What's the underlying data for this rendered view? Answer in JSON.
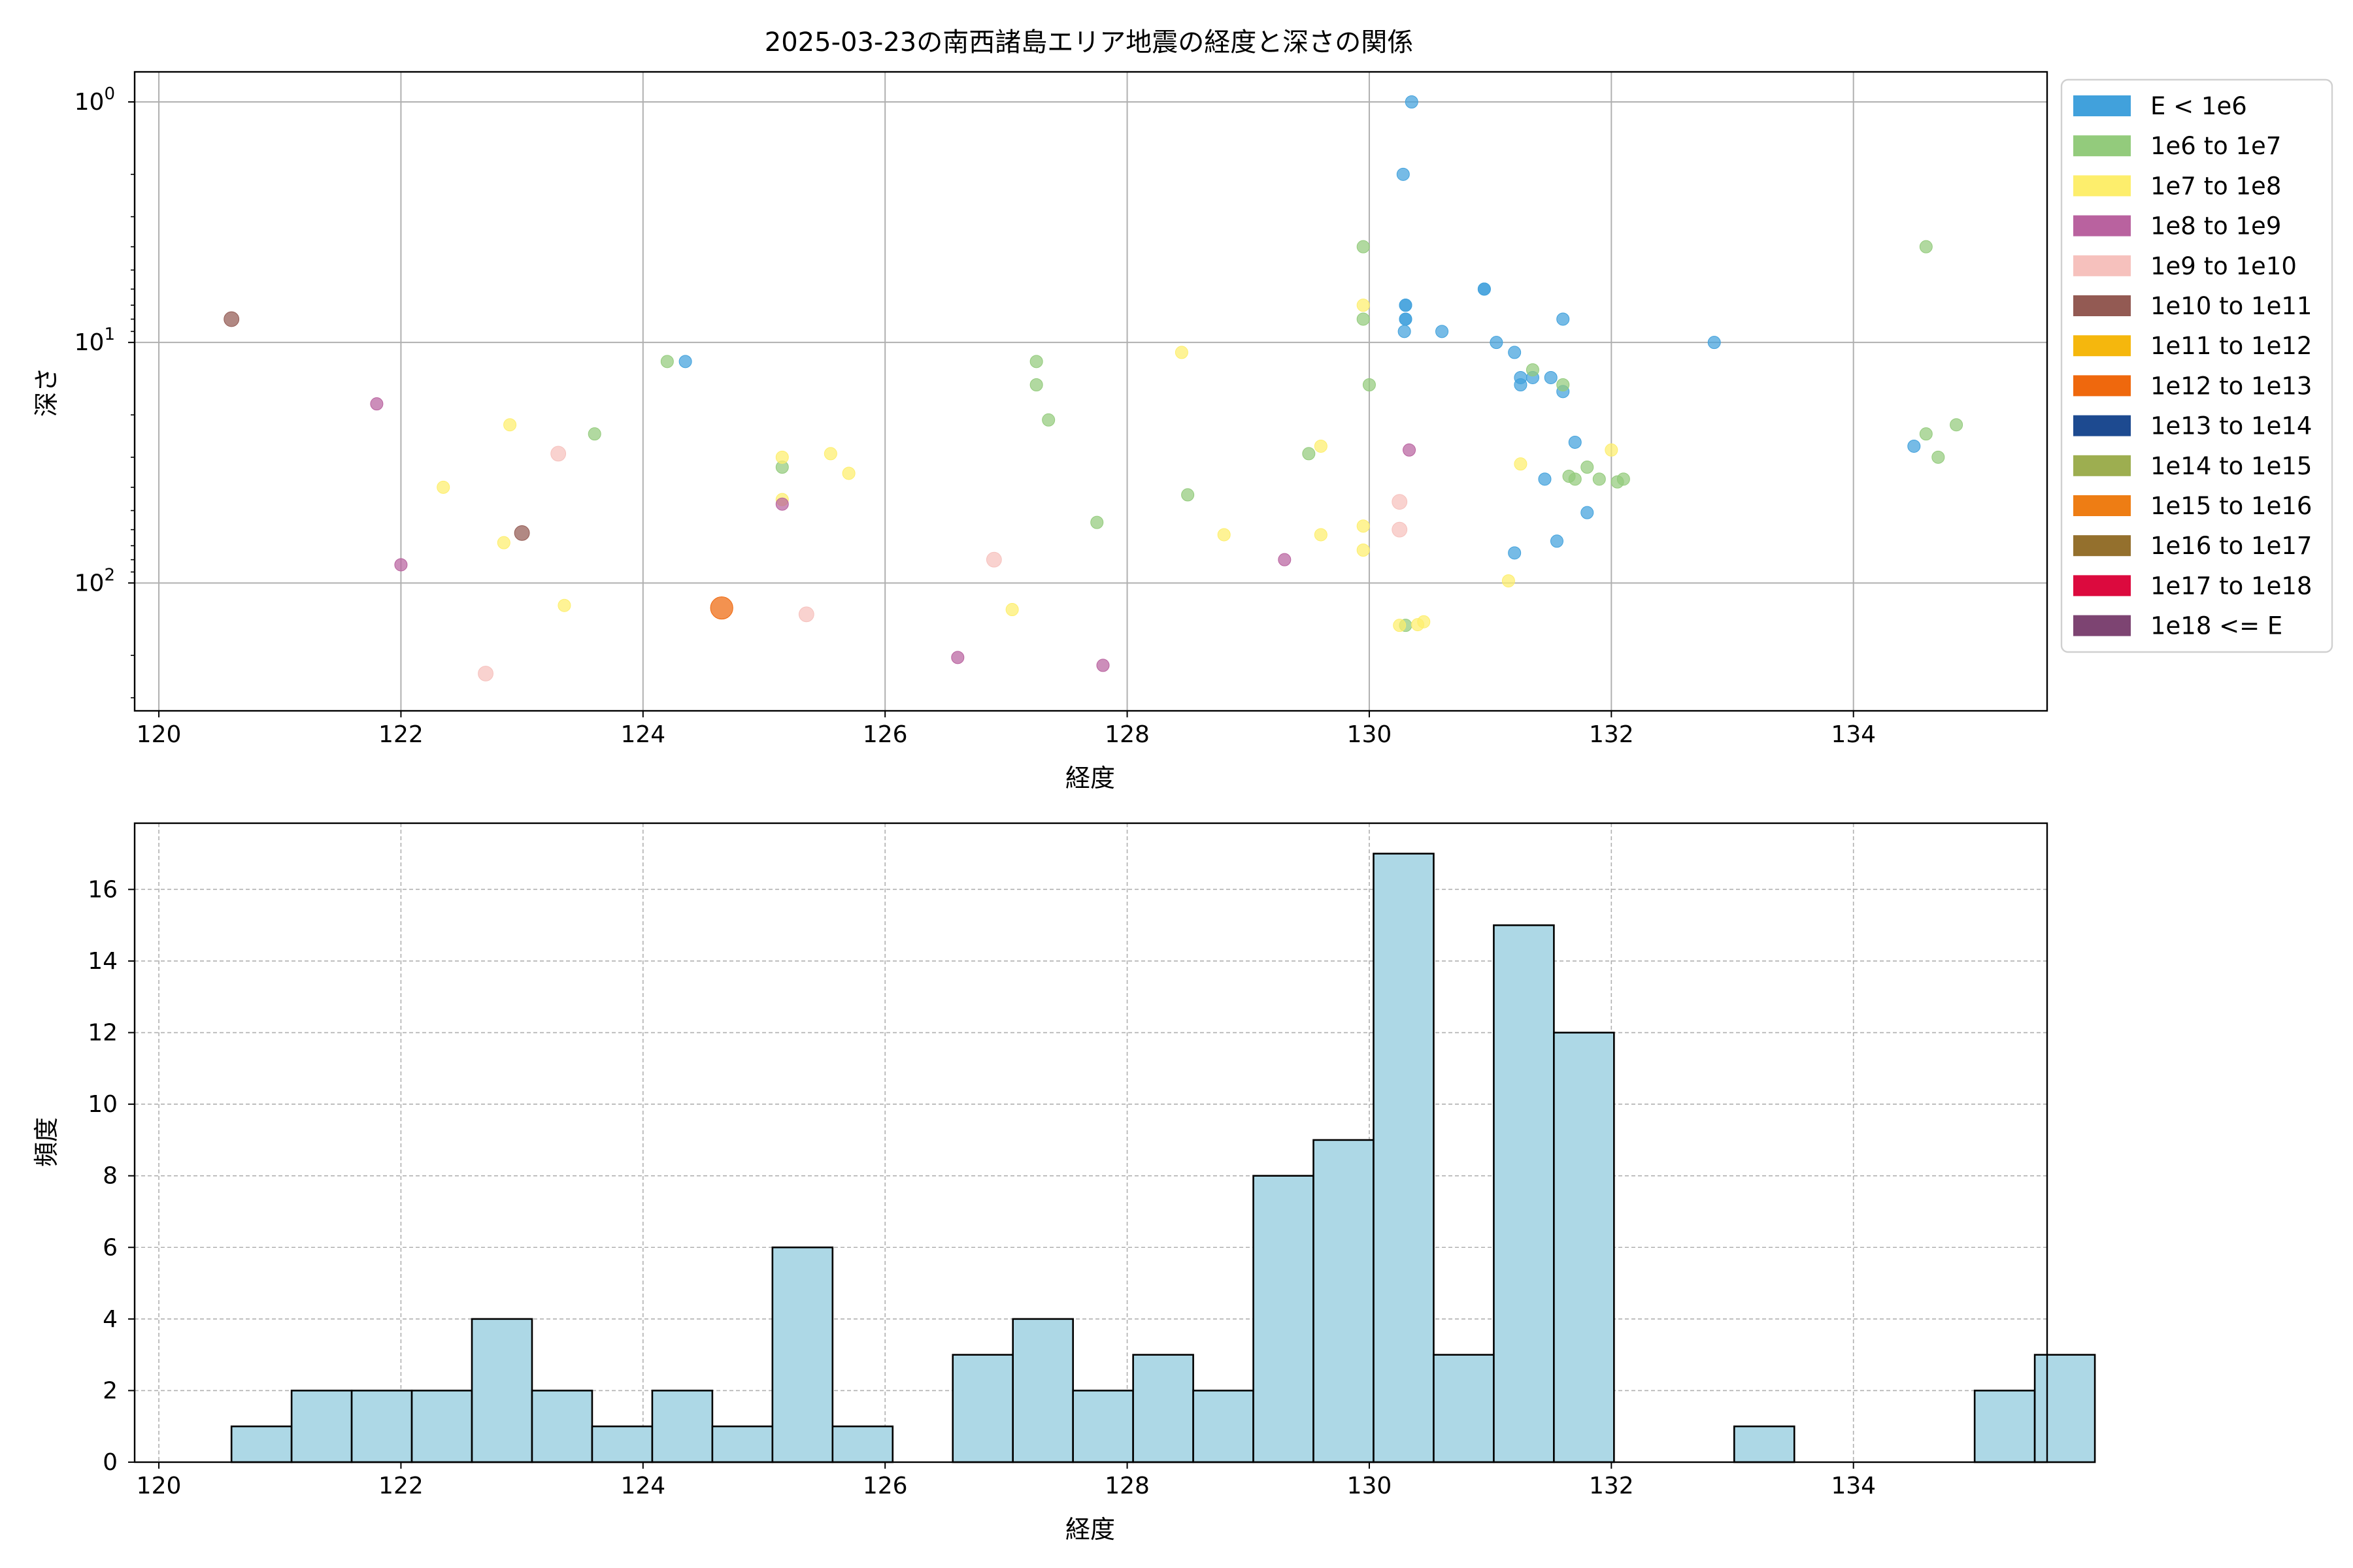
{
  "chart_data": [
    {
      "type": "scatter",
      "title": "2025-03-23の南西諸島エリア地震の経度と深さの関係",
      "xlabel": "経度",
      "ylabel": "深さ",
      "xlim": [
        119.8,
        135.6
      ],
      "ylim": [
        340,
        0.75
      ],
      "yscale": "log",
      "y_inverted": true,
      "grid": true,
      "legend_position": "outside-right",
      "x_ticks": [
        120,
        122,
        124,
        126,
        128,
        130,
        132,
        134
      ],
      "y_ticks": [
        {
          "value": 1,
          "base": "10",
          "exp": "0"
        },
        {
          "value": 10,
          "base": "10",
          "exp": "1"
        },
        {
          "value": 100,
          "base": "10",
          "exp": "2"
        }
      ],
      "legend": [
        {
          "label": "E < 1e6",
          "color": "#41a1dc"
        },
        {
          "label": "1e6 to 1e7",
          "color": "#93cb7c"
        },
        {
          "label": "1e7 to 1e8",
          "color": "#fdee6c"
        },
        {
          "label": "1e8 to 1e9",
          "color": "#b9629f"
        },
        {
          "label": "1e9 to 1e10",
          "color": "#f6c1bd"
        },
        {
          "label": "1e10 to 1e11",
          "color": "#935a53"
        },
        {
          "label": "1e11 to 1e12",
          "color": "#f5b70d"
        },
        {
          "label": "1e12 to 1e13",
          "color": "#ef680d"
        },
        {
          "label": "1e13 to 1e14",
          "color": "#1d4a90"
        },
        {
          "label": "1e14 to 1e15",
          "color": "#9dae50"
        },
        {
          "label": "1e15 to 1e16",
          "color": "#ee7d14"
        },
        {
          "label": "1e16 to 1e17",
          "color": "#94702d"
        },
        {
          "label": "1e17 to 1e18",
          "color": "#dc0a3e"
        },
        {
          "label": "1e18 <= E",
          "color": "#7d4472"
        }
      ],
      "series": [
        {
          "name": "E < 1e6",
          "color": "#41a1dc",
          "size": 5,
          "points": [
            [
              130.35,
              1.0
            ],
            [
              130.28,
              2.0
            ],
            [
              130.3,
              7.0
            ],
            [
              130.3,
              7.0
            ],
            [
              130.3,
              8.0
            ],
            [
              130.3,
              8.0
            ],
            [
              130.29,
              9.0
            ],
            [
              130.6,
              9.0
            ],
            [
              130.95,
              6.0
            ],
            [
              130.95,
              6.0
            ],
            [
              131.05,
              10.0
            ],
            [
              131.2,
              11.0
            ],
            [
              131.25,
              14.0
            ],
            [
              131.25,
              15.0
            ],
            [
              131.35,
              14.0
            ],
            [
              131.5,
              14.0
            ],
            [
              131.6,
              16.0
            ],
            [
              131.6,
              8.0
            ],
            [
              131.7,
              26.0
            ],
            [
              131.45,
              37.0
            ],
            [
              131.8,
              51.0
            ],
            [
              131.55,
              67.0
            ],
            [
              131.2,
              75.0
            ],
            [
              132.85,
              10.0
            ],
            [
              124.35,
              12.0
            ],
            [
              134.5,
              27.0
            ]
          ]
        },
        {
          "name": "1e6 to 1e7",
          "color": "#93cb7c",
          "size": 5,
          "points": [
            [
              124.2,
              12.0
            ],
            [
              127.25,
              12.0
            ],
            [
              127.25,
              15.0
            ],
            [
              127.35,
              21.0
            ],
            [
              125.15,
              33.0
            ],
            [
              123.6,
              24.0
            ],
            [
              127.75,
              56.0
            ],
            [
              128.5,
              43.0
            ],
            [
              129.95,
              4.0
            ],
            [
              129.95,
              8.0
            ],
            [
              130.0,
              15.0
            ],
            [
              129.5,
              29.0
            ],
            [
              130.3,
              150.0
            ],
            [
              131.35,
              13.0
            ],
            [
              131.6,
              15.0
            ],
            [
              131.65,
              36.0
            ],
            [
              131.7,
              37.0
            ],
            [
              131.8,
              33.0
            ],
            [
              131.9,
              37.0
            ],
            [
              132.05,
              38.0
            ],
            [
              132.1,
              37.0
            ],
            [
              134.6,
              4.0
            ],
            [
              134.6,
              24.0
            ],
            [
              134.85,
              22.0
            ],
            [
              134.7,
              30.0
            ]
          ]
        },
        {
          "name": "1e7 to 1e8",
          "color": "#fdee6c",
          "size": 5,
          "points": [
            [
              122.35,
              40.0
            ],
            [
              122.9,
              22.0
            ],
            [
              122.85,
              68.0
            ],
            [
              123.35,
              124.0
            ],
            [
              125.15,
              30.0
            ],
            [
              125.15,
              45.0
            ],
            [
              125.55,
              29.0
            ],
            [
              125.7,
              35.0
            ],
            [
              127.05,
              129.0
            ],
            [
              128.45,
              11.0
            ],
            [
              128.8,
              63.0
            ],
            [
              129.6,
              27.0
            ],
            [
              129.6,
              63.0
            ],
            [
              129.95,
              7.0
            ],
            [
              129.95,
              58.0
            ],
            [
              129.95,
              73.0
            ],
            [
              130.25,
              150.0
            ],
            [
              130.4,
              149.0
            ],
            [
              130.45,
              145.0
            ],
            [
              131.25,
              32.0
            ],
            [
              131.15,
              98.0
            ],
            [
              132.0,
              28.0
            ]
          ]
        },
        {
          "name": "1e8 to 1e9",
          "color": "#b9629f",
          "size": 5,
          "points": [
            [
              121.8,
              18.0
            ],
            [
              122.0,
              84.0
            ],
            [
              125.15,
              47.0
            ],
            [
              126.6,
              204.0
            ],
            [
              127.8,
              220.0
            ],
            [
              129.3,
              80.0
            ],
            [
              130.33,
              28.0
            ]
          ]
        },
        {
          "name": "1e9 to 1e10",
          "color": "#f6c1bd",
          "size": 6,
          "points": [
            [
              123.3,
              29.0
            ],
            [
              122.7,
              238.0
            ],
            [
              125.35,
              135.0
            ],
            [
              126.9,
              80.0
            ],
            [
              130.25,
              46.0
            ],
            [
              130.25,
              60.0
            ]
          ]
        },
        {
          "name": "1e10 to 1e11",
          "color": "#935a53",
          "size": 6,
          "points": [
            [
              120.6,
              8.0
            ],
            [
              123.0,
              62.0
            ]
          ]
        },
        {
          "name": "1e12 to 1e13",
          "color": "#ef680d",
          "size": 9,
          "points": [
            [
              124.65,
              127.0
            ]
          ]
        }
      ]
    },
    {
      "type": "histogram",
      "xlabel": "経度",
      "ylabel": "頻度",
      "xlim": [
        119.8,
        135.6
      ],
      "ylim": [
        0,
        17.85
      ],
      "grid": true,
      "grid_style": "dashed",
      "bar_color": "#add8e6",
      "edge_color": "#000000",
      "x_ticks": [
        120,
        122,
        124,
        126,
        128,
        130,
        132,
        134
      ],
      "y_ticks": [
        0,
        2,
        4,
        6,
        8,
        10,
        12,
        14,
        16
      ],
      "bin_start": 120.6,
      "bin_width": 0.4966,
      "counts": [
        1,
        2,
        2,
        2,
        4,
        2,
        1,
        2,
        1,
        6,
        1,
        0,
        3,
        4,
        2,
        3,
        2,
        8,
        9,
        17,
        3,
        15,
        12,
        0,
        0,
        1,
        0,
        0,
        0,
        2,
        3
      ]
    }
  ]
}
